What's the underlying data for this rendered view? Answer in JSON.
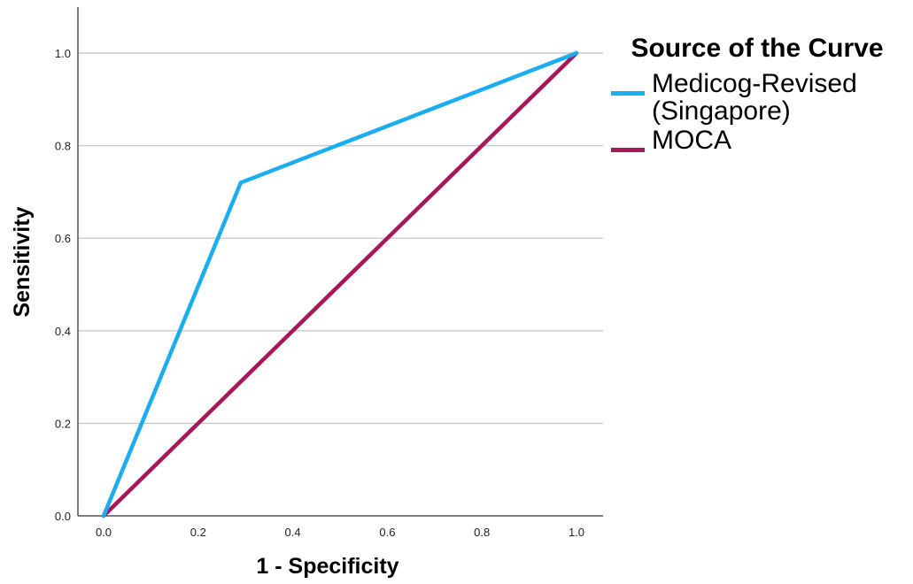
{
  "chart_data": {
    "type": "line",
    "title": "",
    "xlabel": "1 - Specificity",
    "ylabel": "Sensitivity",
    "xlim": [
      0,
      1
    ],
    "ylim": [
      0,
      1
    ],
    "x_ticks": [
      "0.0",
      "0.2",
      "0.4",
      "0.6",
      "0.8",
      "1.0"
    ],
    "y_ticks": [
      "0.0",
      "0.2",
      "0.4",
      "0.6",
      "0.8",
      "1.0"
    ],
    "grid": "horizontal",
    "legend_title": "Source of the Curve",
    "legend_position": "right",
    "series": [
      {
        "name": "Medicog-Revised (Singapore)",
        "color": "#1aaef0",
        "points": [
          [
            0.0,
            0.0
          ],
          [
            0.29,
            0.72
          ],
          [
            1.0,
            1.0
          ]
        ]
      },
      {
        "name": "MOCA",
        "color": "#a8175a",
        "points": [
          [
            0.0,
            0.0
          ],
          [
            1.0,
            1.0
          ]
        ]
      }
    ]
  }
}
